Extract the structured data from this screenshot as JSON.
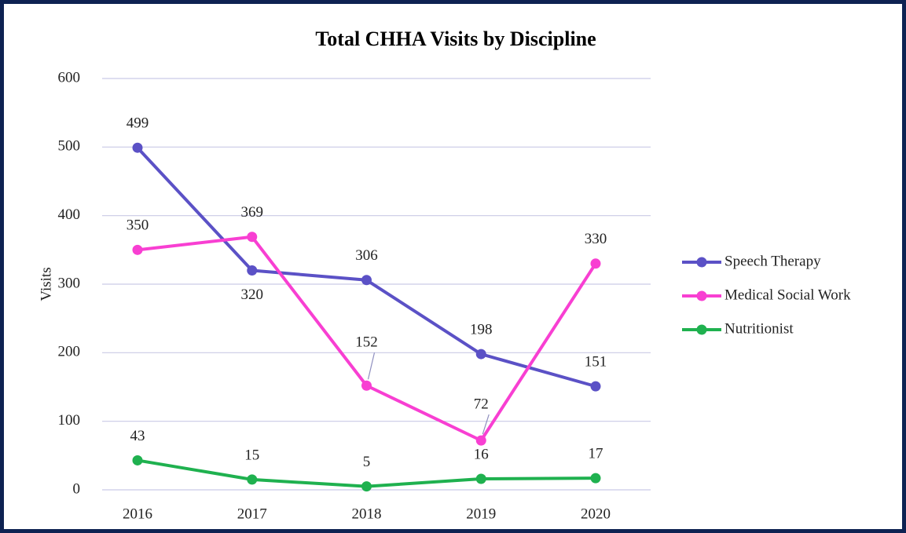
{
  "chart_data": {
    "type": "line",
    "title": "Total CHHA Visits by Discipline",
    "y_label": "Visits",
    "categories": [
      "2016",
      "2017",
      "2018",
      "2019",
      "2020"
    ],
    "series": [
      {
        "name": "Speech Therapy",
        "color": "#5b51c6",
        "values": [
          499,
          320,
          306,
          198,
          151
        ]
      },
      {
        "name": "Medical Social Work",
        "color": "#f83fd2",
        "values": [
          350,
          369,
          152,
          72,
          330
        ]
      },
      {
        "name": "Nutritionist",
        "color": "#1fb14f",
        "values": [
          43,
          15,
          5,
          16,
          17
        ]
      }
    ],
    "ylim": [
      0,
      600
    ],
    "yticks": [
      0,
      100,
      200,
      300,
      400,
      500,
      600
    ],
    "grid": true,
    "legend": "right"
  }
}
